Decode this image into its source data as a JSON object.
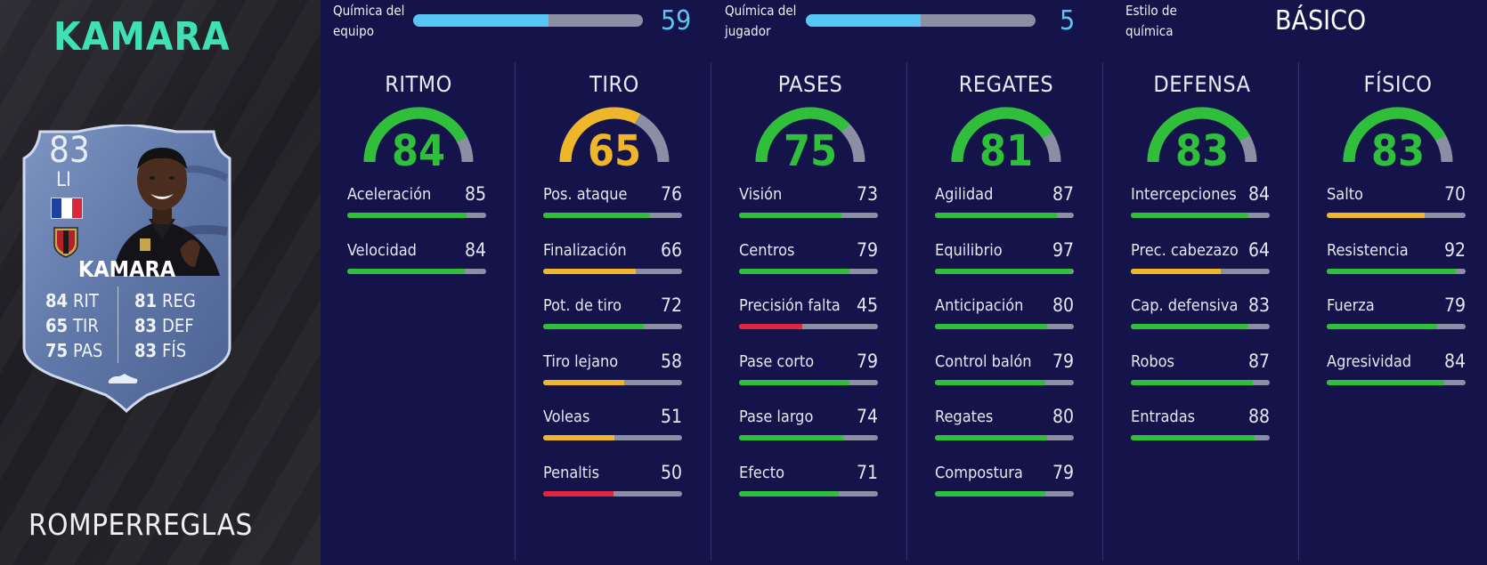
{
  "player": {
    "name": "KAMARA",
    "card_type": "ROMPERREGLAS",
    "card": {
      "rating": "83",
      "position": "LI",
      "name": "KAMARA",
      "stats": [
        {
          "value": "84",
          "label": "RIT"
        },
        {
          "value": "65",
          "label": "TIR"
        },
        {
          "value": "75",
          "label": "PAS"
        },
        {
          "value": "81",
          "label": "REG"
        },
        {
          "value": "83",
          "label": "DEF"
        },
        {
          "value": "83",
          "label": "FÍS"
        }
      ]
    }
  },
  "chemistry": {
    "team": {
      "label_line1": "Química del",
      "label_line2": "equipo",
      "value": "59",
      "max": 100
    },
    "player": {
      "label_line1": "Química del",
      "label_line2": "jugador",
      "value": "5",
      "max": 10
    },
    "style": {
      "label_line1": "Estilo de",
      "label_line2": "química",
      "value": "BÁSICO"
    }
  },
  "colors": {
    "green": "#2fbf3a",
    "yellow": "#f0b62a",
    "red": "#e0253f",
    "track": "#8a8fa3",
    "chem_blue": "#58c6f4",
    "name_teal": "#3ee0b4"
  },
  "categories": [
    {
      "title": "RITMO",
      "value": "84",
      "color": "green",
      "stats": [
        {
          "name": "Aceleración",
          "value": "85",
          "color": "green"
        },
        {
          "name": "Velocidad",
          "value": "84",
          "color": "green"
        }
      ]
    },
    {
      "title": "TIRO",
      "value": "65",
      "color": "yellow",
      "stats": [
        {
          "name": "Pos. ataque",
          "value": "76",
          "color": "green"
        },
        {
          "name": "Finalización",
          "value": "66",
          "color": "yellow"
        },
        {
          "name": "Pot. de tiro",
          "value": "72",
          "color": "green"
        },
        {
          "name": "Tiro lejano",
          "value": "58",
          "color": "yellow"
        },
        {
          "name": "Voleas",
          "value": "51",
          "color": "yellow"
        },
        {
          "name": "Penaltis",
          "value": "50",
          "color": "red"
        }
      ]
    },
    {
      "title": "PASES",
      "value": "75",
      "color": "green",
      "stats": [
        {
          "name": "Visión",
          "value": "73",
          "color": "green"
        },
        {
          "name": "Centros",
          "value": "79",
          "color": "green"
        },
        {
          "name": "Precisión falta",
          "value": "45",
          "color": "red"
        },
        {
          "name": "Pase corto",
          "value": "79",
          "color": "green"
        },
        {
          "name": "Pase largo",
          "value": "74",
          "color": "green"
        },
        {
          "name": "Efecto",
          "value": "71",
          "color": "green"
        }
      ]
    },
    {
      "title": "REGATES",
      "value": "81",
      "color": "green",
      "stats": [
        {
          "name": "Agilidad",
          "value": "87",
          "color": "green"
        },
        {
          "name": "Equilibrio",
          "value": "97",
          "color": "green"
        },
        {
          "name": "Anticipación",
          "value": "80",
          "color": "green"
        },
        {
          "name": "Control balón",
          "value": "79",
          "color": "green"
        },
        {
          "name": "Regates",
          "value": "80",
          "color": "green"
        },
        {
          "name": "Compostura",
          "value": "79",
          "color": "green"
        }
      ]
    },
    {
      "title": "DEFENSA",
      "value": "83",
      "color": "green",
      "stats": [
        {
          "name": "Intercepciones",
          "value": "84",
          "color": "green"
        },
        {
          "name": "Prec. cabezazo",
          "value": "64",
          "color": "yellow"
        },
        {
          "name": "Cap. defensiva",
          "value": "83",
          "color": "green"
        },
        {
          "name": "Robos",
          "value": "87",
          "color": "green"
        },
        {
          "name": "Entradas",
          "value": "88",
          "color": "green"
        }
      ]
    },
    {
      "title": "FÍSICO",
      "value": "83",
      "color": "green",
      "stats": [
        {
          "name": "Salto",
          "value": "70",
          "color": "yellow"
        },
        {
          "name": "Resistencia",
          "value": "92",
          "color": "green"
        },
        {
          "name": "Fuerza",
          "value": "79",
          "color": "green"
        },
        {
          "name": "Agresividad",
          "value": "84",
          "color": "green"
        }
      ]
    }
  ]
}
